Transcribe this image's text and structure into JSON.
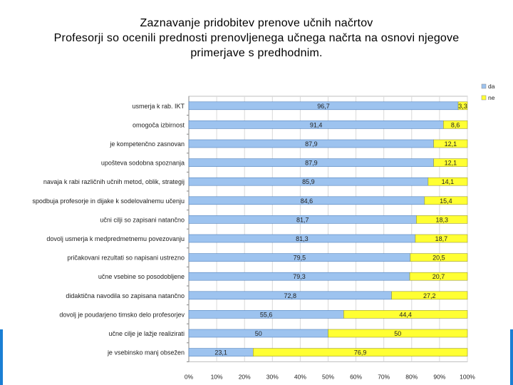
{
  "title_lines": [
    "Zaznavanje pridobitev prenove učnih načrtov",
    "Profesorji so ocenili prednosti prenovljenega učnega načrta na osnovi njegove",
    "primerjave s predhodnim."
  ],
  "colors": {
    "da": "#9dc3ef",
    "ne": "#ffff33",
    "accent": "#1a7fd4",
    "grid": "#d9d9d9"
  },
  "chart_data": {
    "type": "bar",
    "orientation": "horizontal",
    "stacked": "percent",
    "categories": [
      "usmerja k rab. IKT",
      "omogoča izbirnost",
      "je kompetenčno zasnovan",
      "upošteva sodobna spoznanja",
      "navaja k rabi različnih učnih metod, oblik, strategij",
      "spodbuja profesorje in dijake k sodelovalnemu učenju",
      "učni cilji so zapisani natančno",
      "dovolj usmerja k medpredmetnemu povezovanju",
      "pričakovani rezultati so napisani ustrezno",
      "učne vsebine so posodobljene",
      "didaktična navodila so zapisana natančno",
      "dovolj je poudarjeno timsko delo profesorjev",
      "učne cilje je lažje realizirati",
      "je vsebinsko manj obsežen"
    ],
    "series": [
      {
        "name": "da",
        "values": [
          96.7,
          91.4,
          87.9,
          87.9,
          85.9,
          84.6,
          81.7,
          81.3,
          79.5,
          79.3,
          72.8,
          55.6,
          50,
          23.1
        ],
        "labels": [
          "96,7",
          "91,4",
          "87,9",
          "87,9",
          "85,9",
          "84,6",
          "81,7",
          "81,3",
          "79,5",
          "79,3",
          "72,8",
          "55,6",
          "50",
          "23,1"
        ]
      },
      {
        "name": "ne",
        "values": [
          3.3,
          8.6,
          12.1,
          12.1,
          14.1,
          15.4,
          18.3,
          18.7,
          20.5,
          20.7,
          27.2,
          44.4,
          50,
          76.9
        ],
        "labels": [
          "3,3",
          "8,6",
          "12,1",
          "12,1",
          "14,1",
          "15,4",
          "18,3",
          "18,7",
          "20,5",
          "20,7",
          "27,2",
          "44,4",
          "50",
          "76,9"
        ]
      }
    ],
    "x_ticks": [
      "0%",
      "10%",
      "20%",
      "30%",
      "40%",
      "50%",
      "60%",
      "70%",
      "80%",
      "90%",
      "100%"
    ],
    "xlim": [
      0,
      100
    ],
    "grid": true,
    "legend": "top-right"
  }
}
